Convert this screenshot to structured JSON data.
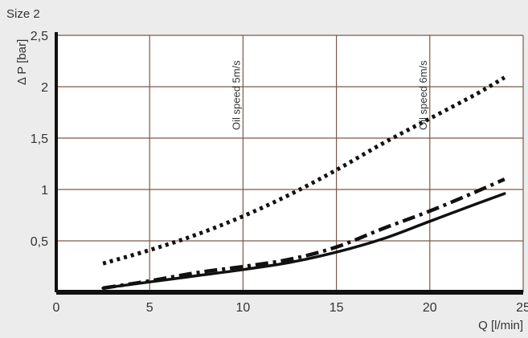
{
  "colors": {
    "background": "#ececec",
    "plot_background": "#ffffff",
    "grid": "#7a5a4a",
    "axis": "#111111",
    "series": "#111111",
    "text": "#333333"
  },
  "chart_data": {
    "type": "line",
    "title": "Size 2",
    "xlabel": "Q [l/min]",
    "ylabel": "Δ P [bar]",
    "xlim": [
      0,
      25
    ],
    "ylim": [
      0,
      2.5
    ],
    "grid": true,
    "x_ticks": [
      0,
      5,
      10,
      15,
      20,
      25
    ],
    "y_ticks": [
      0.5,
      1,
      1.5,
      2,
      2.5
    ],
    "x_tick_labels": [
      "0",
      "5",
      "10",
      "15",
      "20",
      "25"
    ],
    "y_tick_labels": [
      "0,5",
      "1",
      "1,5",
      "2",
      "2,5"
    ],
    "series": [
      {
        "style": "dotted",
        "x": [
          2.5,
          5,
          7.5,
          10,
          12.5,
          15,
          17.5,
          20,
          22.5,
          24
        ],
        "y": [
          0.28,
          0.41,
          0.56,
          0.74,
          0.95,
          1.19,
          1.45,
          1.69,
          1.93,
          2.09
        ]
      },
      {
        "style": "dash-dot",
        "x": [
          2.5,
          5,
          7.5,
          10,
          12.5,
          15,
          17.5,
          20,
          22.5,
          24
        ],
        "y": [
          0.04,
          0.11,
          0.19,
          0.25,
          0.32,
          0.44,
          0.62,
          0.79,
          0.98,
          1.1
        ]
      },
      {
        "style": "solid",
        "x": [
          2.5,
          5,
          7.5,
          10,
          12.5,
          15,
          17.5,
          20,
          22.5,
          24
        ],
        "y": [
          0.04,
          0.1,
          0.16,
          0.22,
          0.29,
          0.39,
          0.52,
          0.69,
          0.86,
          0.96
        ]
      }
    ],
    "annotations": [
      {
        "text": "Oil speed 5m/s",
        "x": 10,
        "orientation": "vertical"
      },
      {
        "text": "Oil speed 6m/s",
        "x": 20,
        "orientation": "vertical"
      }
    ]
  }
}
